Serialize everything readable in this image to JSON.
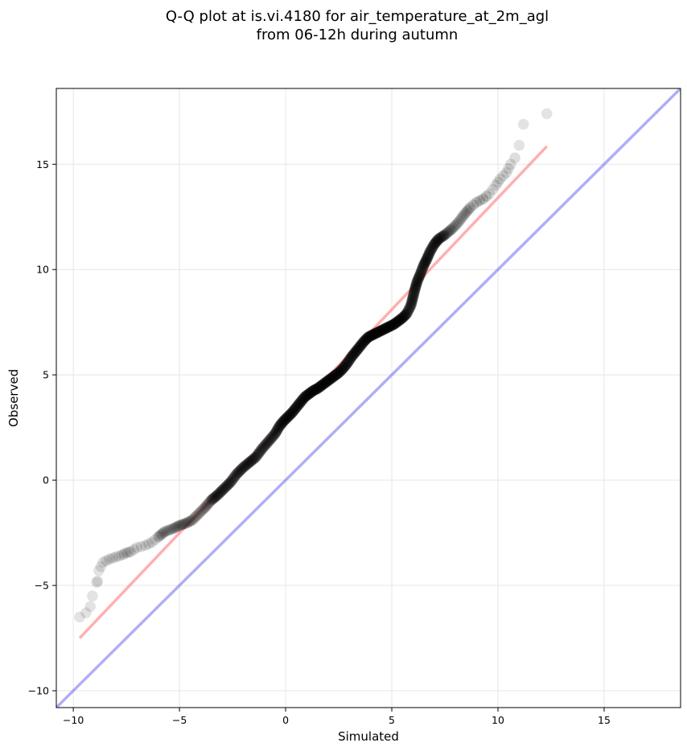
{
  "chart_data": {
    "type": "scatter",
    "title": "Q-Q plot at is.vi.4180 for air_temperature_at_2m_agl",
    "subtitle": "from 06-12h during autumn",
    "xlabel": "Simulated",
    "ylabel": "Observed",
    "xlim": [
      -10.8,
      18.6
    ],
    "ylim": [
      -10.8,
      18.6
    ],
    "x_ticks": [
      -10,
      -5,
      0,
      5,
      10,
      15
    ],
    "y_ticks": [
      -10,
      -5,
      0,
      5,
      10,
      15
    ],
    "x_tick_labels": [
      "−10",
      "−5",
      "0",
      "5",
      "10",
      "15"
    ],
    "y_tick_labels": [
      "−10",
      "−5",
      "0",
      "5",
      "10",
      "15"
    ],
    "grid": true,
    "colors": {
      "points": "#000000",
      "fit_line": "#ff4d4d",
      "identity_line": "#4d4dee",
      "grid": "#e6e6e6"
    },
    "series": [
      {
        "type": "scatter",
        "points": [
          [
            -9.7,
            -6.5
          ],
          [
            -9.4,
            -6.3
          ],
          [
            -9.2,
            -6.0
          ],
          [
            -9.1,
            -5.5
          ],
          [
            -8.9,
            -4.85
          ],
          [
            -8.85,
            -4.8
          ],
          [
            -8.8,
            -4.3
          ],
          [
            -8.6,
            -3.9
          ],
          [
            -8.3,
            -3.75
          ],
          [
            -8.0,
            -3.65
          ],
          [
            -7.7,
            -3.55
          ],
          [
            -7.5,
            -3.45
          ],
          [
            -7.3,
            -3.4
          ],
          [
            -7.0,
            -3.2
          ],
          [
            -6.6,
            -3.1
          ],
          [
            -6.3,
            -2.95
          ],
          [
            -6.0,
            -2.7
          ],
          [
            -5.7,
            -2.45
          ],
          [
            -5.3,
            -2.3
          ],
          [
            -5.0,
            -2.15
          ],
          [
            -4.7,
            -2.05
          ],
          [
            -4.4,
            -1.9
          ],
          [
            -4.1,
            -1.6
          ],
          [
            -3.8,
            -1.3
          ],
          [
            -3.5,
            -0.95
          ],
          [
            -3.2,
            -0.7
          ],
          [
            -2.9,
            -0.4
          ],
          [
            -2.6,
            -0.1
          ],
          [
            -2.3,
            0.3
          ],
          [
            -2.0,
            0.6
          ],
          [
            -1.7,
            0.85
          ],
          [
            -1.4,
            1.1
          ],
          [
            -1.1,
            1.5
          ],
          [
            -0.8,
            1.85
          ],
          [
            -0.5,
            2.2
          ],
          [
            -0.3,
            2.55
          ],
          [
            -0.1,
            2.8
          ],
          [
            0.1,
            3.0
          ],
          [
            0.3,
            3.2
          ],
          [
            0.5,
            3.45
          ],
          [
            0.7,
            3.7
          ],
          [
            0.9,
            3.95
          ],
          [
            1.1,
            4.1
          ],
          [
            1.3,
            4.25
          ],
          [
            1.5,
            4.35
          ],
          [
            1.7,
            4.5
          ],
          [
            1.9,
            4.65
          ],
          [
            2.1,
            4.8
          ],
          [
            2.3,
            4.95
          ],
          [
            2.5,
            5.1
          ],
          [
            2.7,
            5.3
          ],
          [
            2.9,
            5.55
          ],
          [
            3.1,
            5.85
          ],
          [
            3.3,
            6.1
          ],
          [
            3.5,
            6.35
          ],
          [
            3.7,
            6.6
          ],
          [
            3.9,
            6.8
          ],
          [
            4.1,
            6.9
          ],
          [
            4.3,
            7.0
          ],
          [
            4.5,
            7.1
          ],
          [
            4.7,
            7.2
          ],
          [
            4.9,
            7.3
          ],
          [
            5.1,
            7.4
          ],
          [
            5.3,
            7.55
          ],
          [
            5.5,
            7.7
          ],
          [
            5.7,
            7.9
          ],
          [
            5.9,
            8.3
          ],
          [
            6.0,
            8.7
          ],
          [
            6.1,
            9.1
          ],
          [
            6.2,
            9.45
          ],
          [
            6.35,
            9.8
          ],
          [
            6.5,
            10.2
          ],
          [
            6.65,
            10.5
          ],
          [
            6.8,
            10.85
          ],
          [
            7.0,
            11.2
          ],
          [
            7.2,
            11.45
          ],
          [
            7.5,
            11.65
          ],
          [
            7.8,
            11.9
          ],
          [
            8.1,
            12.2
          ],
          [
            8.4,
            12.6
          ],
          [
            8.7,
            12.95
          ],
          [
            9.0,
            13.2
          ],
          [
            9.3,
            13.35
          ],
          [
            9.6,
            13.6
          ],
          [
            9.9,
            14.0
          ],
          [
            10.1,
            14.3
          ],
          [
            10.4,
            14.6
          ],
          [
            10.6,
            15.0
          ],
          [
            10.8,
            15.3
          ],
          [
            11.0,
            15.9
          ],
          [
            11.2,
            16.9
          ],
          [
            12.3,
            17.4
          ]
        ]
      },
      {
        "type": "line",
        "points": [
          [
            -9.7,
            -7.5
          ],
          [
            12.3,
            15.85
          ]
        ]
      },
      {
        "type": "line",
        "points": [
          [
            -10.8,
            -10.8
          ],
          [
            18.6,
            18.6
          ]
        ]
      }
    ]
  }
}
